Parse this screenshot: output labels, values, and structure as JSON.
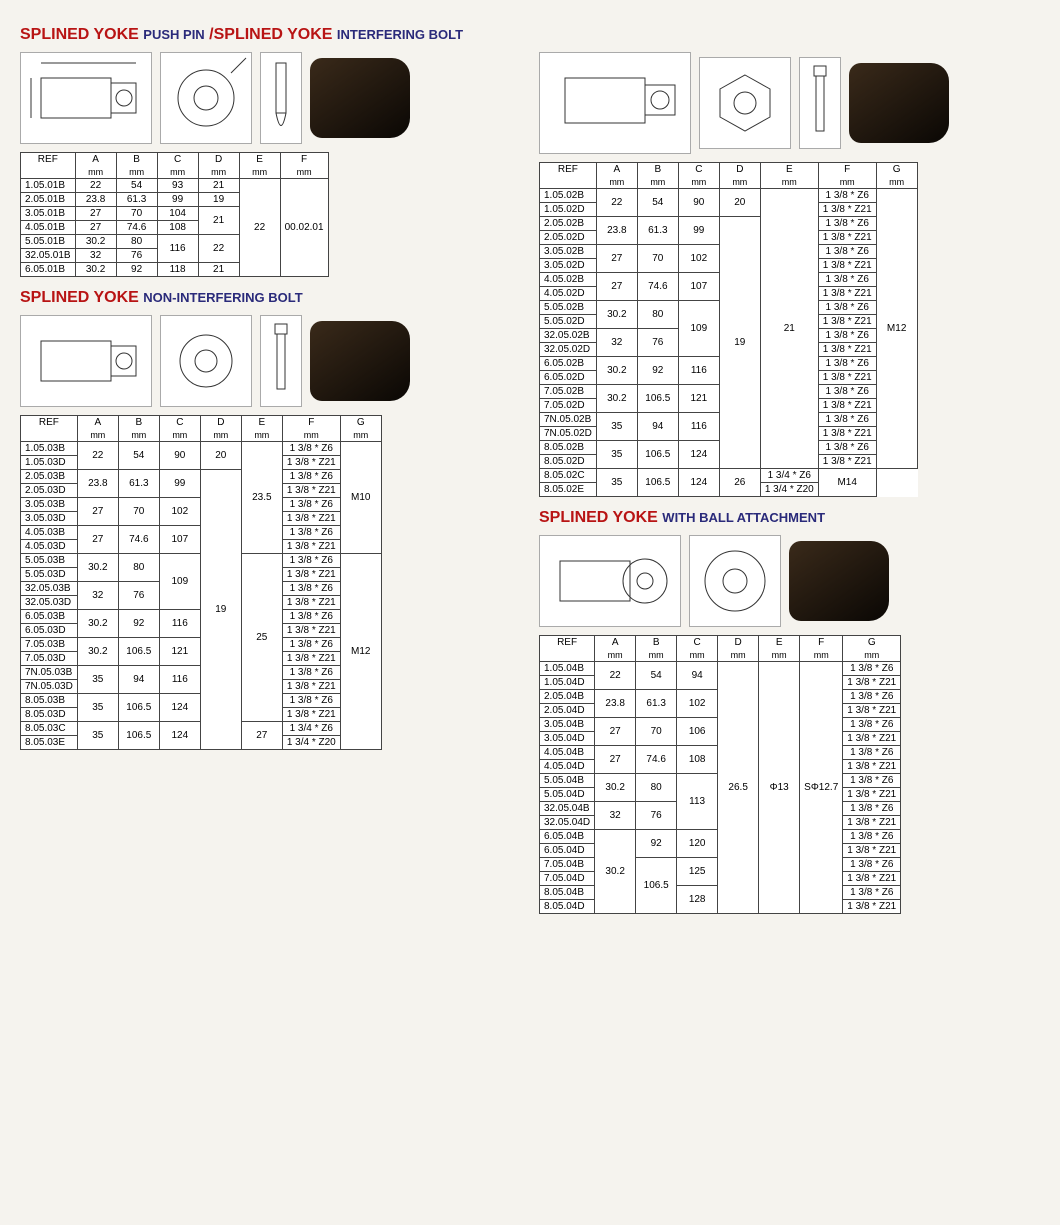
{
  "colors": {
    "title_red": "#b81414",
    "title_sub": "#2a2a7a",
    "border": "#444444",
    "bg": "#f5f3ee"
  },
  "fonts": {
    "title_size": 16,
    "sub_size": 13,
    "table_size": 10
  },
  "section1": {
    "title_main": "SPLINED YOKE",
    "title_sub": "PUSH PIN",
    "headers": [
      "REF",
      "A",
      "B",
      "C",
      "D",
      "E",
      "F"
    ],
    "units": [
      "",
      "mm",
      "mm",
      "mm",
      "mm",
      "mm",
      "mm"
    ],
    "rows": [
      {
        "ref": "1.05.01B",
        "a": "22",
        "b": "54",
        "c": "93",
        "d": "21",
        "e_span": 0,
        "f_span": 0
      },
      {
        "ref": "2.05.01B",
        "a": "23.8",
        "b": "61.3",
        "c": "99",
        "d": "19",
        "e_span": 0,
        "f_span": 0
      },
      {
        "ref": "3.05.01B",
        "a": "27",
        "b": "70",
        "c": "104",
        "d_merge": "21",
        "d_rows": 2
      },
      {
        "ref": "4.05.01B",
        "a": "27",
        "b": "74.6",
        "c": "108"
      },
      {
        "ref": "5.05.01B",
        "a": "30.2",
        "b": "80",
        "c_merge": "116",
        "c_rows": 2,
        "d_merge": "22",
        "d_rows2": 2
      },
      {
        "ref": "32.05.01B",
        "a": "32",
        "b": "76"
      },
      {
        "ref": "6.05.01B",
        "a": "30.2",
        "b": "92",
        "c": "118",
        "d": "21"
      }
    ],
    "e_val": "22",
    "f_val": "00.02.01"
  },
  "section2": {
    "title_main": "SPLINED YOKE",
    "title_sub": "INTERFERING BOLT",
    "headers": [
      "REF",
      "A",
      "B",
      "C",
      "D",
      "E",
      "F",
      "G"
    ],
    "units": [
      "",
      "mm",
      "mm",
      "mm",
      "mm",
      "mm",
      "mm",
      "mm"
    ],
    "groups": [
      {
        "refs": [
          "1.05.02B",
          "1.05.02D"
        ],
        "a": "22",
        "b": "54",
        "c": "90",
        "d": "20",
        "f": [
          "1 3/8 * Z6",
          "1 3/8 * Z21"
        ]
      },
      {
        "refs": [
          "2.05.02B",
          "2.05.02D"
        ],
        "a": "23.8",
        "b": "61.3",
        "c": "99",
        "f": [
          "1 3/8 * Z6",
          "1 3/8 * Z21"
        ]
      },
      {
        "refs": [
          "3.05.02B",
          "3.05.02D"
        ],
        "a": "27",
        "b": "70",
        "c": "102",
        "f": [
          "1 3/8 * Z6",
          "1 3/8 * Z21"
        ]
      },
      {
        "refs": [
          "4.05.02B",
          "4.05.02D"
        ],
        "a": "27",
        "b": "74.6",
        "c": "107",
        "f": [
          "1 3/8 * Z6",
          "1 3/8 * Z21"
        ]
      },
      {
        "refs": [
          "5.05.02B",
          "5.05.02D"
        ],
        "a": "30.2",
        "b": "80",
        "f": [
          "1 3/8 * Z6",
          "1 3/8 * Z21"
        ]
      },
      {
        "refs": [
          "32.05.02B",
          "32.05.02D"
        ],
        "a": "32",
        "b": "76",
        "c": "109",
        "f": [
          "1 3/8 * Z6",
          "1 3/8 * Z21"
        ]
      },
      {
        "refs": [
          "6.05.02B",
          "6.05.02D"
        ],
        "a": "30.2",
        "b": "92",
        "c2": "116",
        "f": [
          "1 3/8 * Z6",
          "1 3/8 * Z21"
        ]
      },
      {
        "refs": [
          "7.05.02B",
          "7.05.02D"
        ],
        "a": "30.2",
        "b": "106.5",
        "c2": "121",
        "f": [
          "1 3/8 * Z6",
          "1 3/8 * Z21"
        ]
      },
      {
        "refs": [
          "7N.05.02B",
          "7N.05.02D"
        ],
        "a": "35",
        "b": "94",
        "c2": "116",
        "f": [
          "1 3/8 * Z6",
          "1 3/8 * Z21"
        ]
      },
      {
        "refs": [
          "8.05.02B",
          "8.05.02D"
        ],
        "a": "35",
        "b": "106.5",
        "c2": "124",
        "f": [
          "1 3/8 * Z6",
          "1 3/8 * Z21"
        ]
      },
      {
        "refs": [
          "8.05.02C",
          "8.05.02E"
        ],
        "a": "35",
        "b": "106.5",
        "c2": "124",
        "e2": "26",
        "f": [
          "1 3/4 * Z6",
          "1 3/4 * Z20"
        ],
        "g2": "M14"
      }
    ],
    "d_big": "19",
    "e_big": "21",
    "g_big": "M12"
  },
  "section3": {
    "title_main": "SPLINED YOKE",
    "title_sub": "NON-INTERFERING BOLT",
    "headers": [
      "REF",
      "A",
      "B",
      "C",
      "D",
      "E",
      "F",
      "G"
    ],
    "units": [
      "",
      "mm",
      "mm",
      "mm",
      "mm",
      "mm",
      "mm",
      "mm"
    ],
    "groups": [
      {
        "refs": [
          "1.05.03B",
          "1.05.03D"
        ],
        "a": "22",
        "b": "54",
        "c": "90",
        "d": "20",
        "f": [
          "1 3/8 * Z6",
          "1 3/8 * Z21"
        ]
      },
      {
        "refs": [
          "2.05.03B",
          "2.05.03D"
        ],
        "a": "23.8",
        "b": "61.3",
        "c": "99",
        "f": [
          "1 3/8 * Z6",
          "1 3/8 * Z21"
        ]
      },
      {
        "refs": [
          "3.05.03B",
          "3.05.03D"
        ],
        "a": "27",
        "b": "70",
        "c": "102",
        "f": [
          "1 3/8 * Z6",
          "1 3/8 * Z21"
        ]
      },
      {
        "refs": [
          "4.05.03B",
          "4.05.03D"
        ],
        "a": "27",
        "b": "74.6",
        "c": "107",
        "f": [
          "1 3/8 * Z6",
          "1 3/8 * Z21"
        ]
      },
      {
        "refs": [
          "5.05.03B",
          "5.05.03D"
        ],
        "a": "30.2",
        "b": "80",
        "f": [
          "1 3/8 * Z6",
          "1 3/8 * Z21"
        ]
      },
      {
        "refs": [
          "32.05.03B",
          "32.05.03D"
        ],
        "a": "32",
        "b": "76",
        "c": "109",
        "f": [
          "1 3/8 * Z6",
          "1 3/8 * Z21"
        ]
      },
      {
        "refs": [
          "6.05.03B",
          "6.05.03D"
        ],
        "a": "30.2",
        "b": "92",
        "c2": "116",
        "f": [
          "1 3/8 * Z6",
          "1 3/8 * Z21"
        ]
      },
      {
        "refs": [
          "7.05.03B",
          "7.05.03D"
        ],
        "a": "30.2",
        "b": "106.5",
        "c2": "121",
        "f": [
          "1 3/8 * Z6",
          "1 3/8 * Z21"
        ]
      },
      {
        "refs": [
          "7N.05.03B",
          "7N.05.03D"
        ],
        "a": "35",
        "b": "94",
        "c2": "116",
        "f": [
          "1 3/8 * Z6",
          "1 3/8 * Z21"
        ]
      },
      {
        "refs": [
          "8.05.03B",
          "8.05.03D"
        ],
        "a": "35",
        "b": "106.5",
        "c2": "124",
        "f": [
          "1 3/8 * Z6",
          "1 3/8 * Z21"
        ]
      },
      {
        "refs": [
          "8.05.03C",
          "8.05.03E"
        ],
        "a": "35",
        "b": "106.5",
        "c2": "124",
        "e2": "27",
        "f": [
          "1 3/4 * Z6",
          "1 3/4 * Z20"
        ]
      }
    ],
    "e_top": "23.5",
    "e_mid": "25",
    "d_big": "19",
    "g_top": "M10",
    "g_mid": "M12"
  },
  "section4": {
    "title_main": "SPLINED YOKE",
    "title_sub": "WITH BALL ATTACHMENT",
    "headers": [
      "REF",
      "A",
      "B",
      "C",
      "D",
      "E",
      "F",
      "G"
    ],
    "units": [
      "",
      "mm",
      "mm",
      "mm",
      "mm",
      "mm",
      "mm",
      "mm"
    ],
    "groups": [
      {
        "refs": [
          "1.05.04B",
          "1.05.04D"
        ],
        "a": "22",
        "b": "54",
        "c": "94",
        "g": [
          "1 3/8 * Z6",
          "1 3/8 * Z21"
        ]
      },
      {
        "refs": [
          "2.05.04B",
          "2.05.04D"
        ],
        "a": "23.8",
        "b": "61.3",
        "c": "102",
        "g": [
          "1 3/8 * Z6",
          "1 3/8 * Z21"
        ]
      },
      {
        "refs": [
          "3.05.04B",
          "3.05.04D"
        ],
        "a": "27",
        "b": "70",
        "c": "106",
        "g": [
          "1 3/8 * Z6",
          "1 3/8 * Z21"
        ]
      },
      {
        "refs": [
          "4.05.04B",
          "4.05.04D"
        ],
        "a": "27",
        "b": "74.6",
        "c": "108",
        "g": [
          "1 3/8 * Z6",
          "1 3/8 * Z21"
        ]
      },
      {
        "refs": [
          "5.05.04B",
          "5.05.04D"
        ],
        "a": "30.2",
        "b": "80",
        "g": [
          "1 3/8 * Z6",
          "1 3/8 * Z21"
        ]
      },
      {
        "refs": [
          "32.05.04B",
          "32.05.04D"
        ],
        "a": "32",
        "b": "76",
        "c": "113",
        "g": [
          "1 3/8 * Z6",
          "1 3/8 * Z21"
        ]
      },
      {
        "refs": [
          "6.05.04B",
          "6.05.04D"
        ],
        "b": "92",
        "c2": "120",
        "g": [
          "1 3/8 * Z6",
          "1 3/8 * Z21"
        ]
      },
      {
        "refs": [
          "7.05.04B",
          "7.05.04D"
        ],
        "a": "30.2",
        "c2": "125",
        "g": [
          "1 3/8 * Z6",
          "1 3/8 * Z21"
        ]
      },
      {
        "refs": [
          "8.05.04B",
          "8.05.04D"
        ],
        "b": "106.5",
        "c2": "128",
        "g": [
          "1 3/8 * Z6",
          "1 3/8 * Z21"
        ]
      }
    ],
    "d_val": "26.5",
    "e_val": "Φ13",
    "f_val": "SΦ12.7"
  }
}
